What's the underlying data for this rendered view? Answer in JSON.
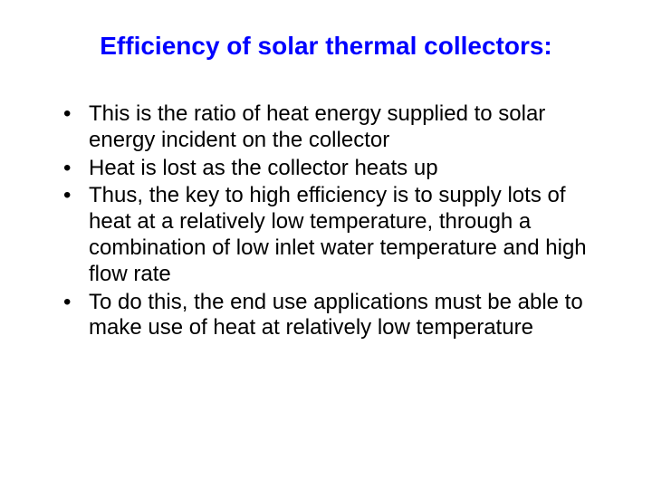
{
  "slide": {
    "title": "Efficiency of solar thermal collectors:",
    "bullets": [
      "This is the ratio of heat energy supplied to solar energy incident on the collector",
      "Heat is lost as the collector heats up",
      "Thus, the key to high efficiency is to supply lots of heat at a relatively low temperature, through a combination of low inlet water temperature and high flow rate",
      "To do this, the end use applications must be able to make use of heat at relatively low temperature"
    ],
    "title_color": "#0000ff",
    "text_color": "#000000",
    "background_color": "#ffffff",
    "title_fontsize": 28,
    "body_fontsize": 24
  }
}
